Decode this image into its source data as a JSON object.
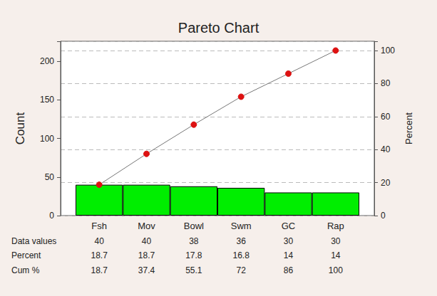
{
  "chart_data": {
    "type": "pareto",
    "title": "Pareto Chart",
    "categories": [
      "Fsh",
      "Mov",
      "Bowl",
      "Swm",
      "GC",
      "Rap"
    ],
    "ylabel": "Count",
    "y2label": "Percent",
    "ylim": [
      0,
      226
    ],
    "yticks": [
      0,
      50,
      100,
      150,
      200
    ],
    "y2lim": [
      0,
      105.6
    ],
    "y2ticks": [
      0,
      20,
      40,
      60,
      80,
      100
    ],
    "grid": true,
    "series": [
      {
        "name": "Data values",
        "type": "bar",
        "color": "#00ee00",
        "values": [
          40,
          40,
          38,
          36,
          30,
          30
        ]
      },
      {
        "name": "Cum %",
        "type": "line",
        "axis": "y2",
        "color": "#dd1111",
        "marker": "circle",
        "values": [
          18.7,
          37.4,
          55.1,
          72,
          86,
          100
        ]
      }
    ],
    "percent": {
      "name": "Percent",
      "values": [
        18.7,
        18.7,
        17.8,
        16.8,
        14,
        14
      ]
    }
  }
}
